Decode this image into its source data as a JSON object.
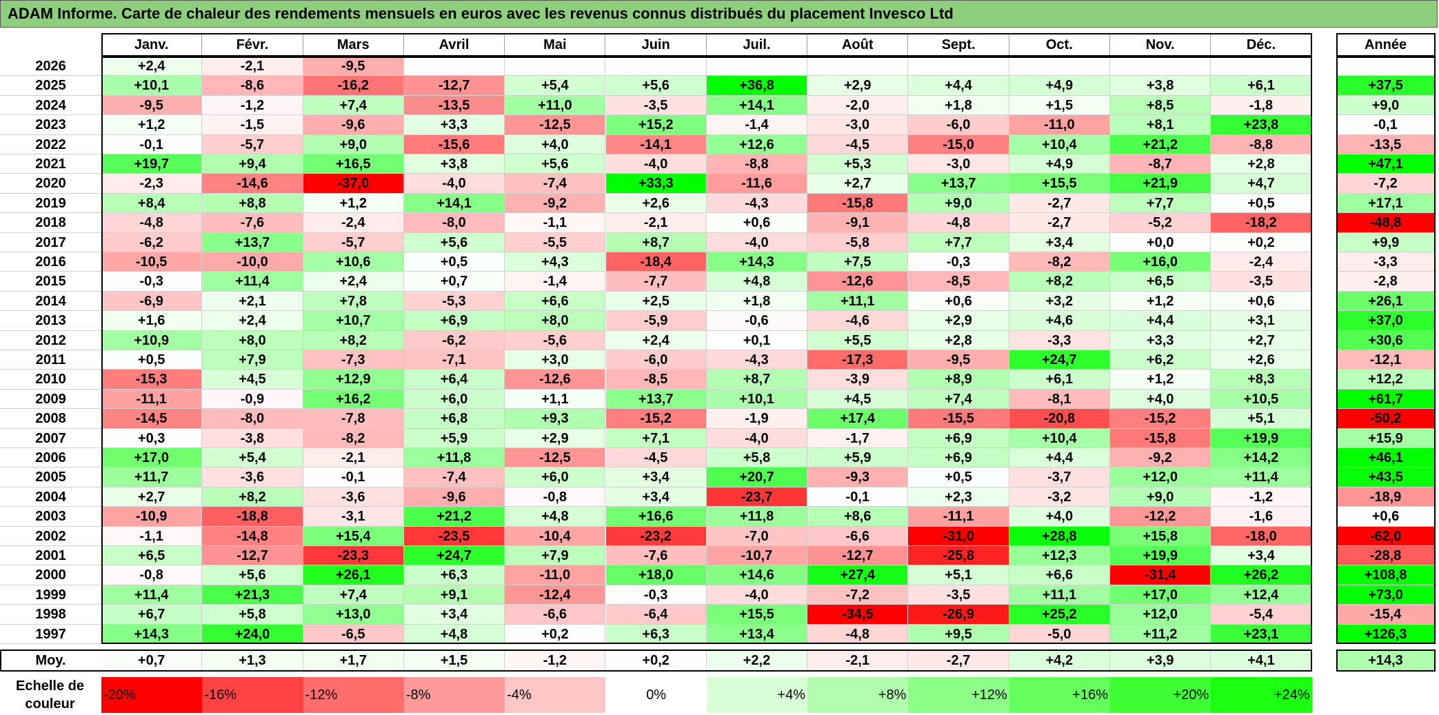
{
  "title": "ADAM Informe. Carte de chaleur des rendements mensuels en euros avec les revenus connus distribués du placement Invesco Ltd",
  "chart_data": {
    "type": "heatmap",
    "months": [
      "Janv.",
      "Févr.",
      "Mars",
      "Avril",
      "Mai",
      "Juin",
      "Juil.",
      "Août",
      "Sept.",
      "Oct.",
      "Nov.",
      "Déc."
    ],
    "year_header": "Année",
    "rows": [
      {
        "year": "2026",
        "values": [
          2.4,
          -2.1,
          -9.5,
          null,
          null,
          null,
          null,
          null,
          null,
          null,
          null,
          null
        ],
        "annual": null
      },
      {
        "year": "2025",
        "values": [
          10.1,
          -8.6,
          -16.2,
          -12.7,
          5.4,
          5.6,
          36.8,
          2.9,
          4.4,
          4.9,
          3.8,
          6.1
        ],
        "annual": 37.5
      },
      {
        "year": "2024",
        "values": [
          -9.5,
          -1.2,
          7.4,
          -13.5,
          11.0,
          -3.5,
          14.1,
          -2.0,
          1.8,
          1.5,
          8.5,
          -1.8
        ],
        "annual": 9.0
      },
      {
        "year": "2023",
        "values": [
          1.2,
          -1.5,
          -9.6,
          3.3,
          -12.5,
          15.2,
          -1.4,
          -3.0,
          -6.0,
          -11.0,
          8.1,
          23.8
        ],
        "annual": -0.1
      },
      {
        "year": "2022",
        "values": [
          -0.1,
          -5.7,
          9.0,
          -15.6,
          4.0,
          -14.1,
          12.6,
          -4.5,
          -15.0,
          10.4,
          21.2,
          -8.8
        ],
        "annual": -13.5
      },
      {
        "year": "2021",
        "values": [
          19.7,
          9.4,
          16.5,
          3.8,
          5.6,
          -4.0,
          -8.8,
          5.3,
          -3.0,
          4.9,
          -8.7,
          2.8
        ],
        "annual": 47.1
      },
      {
        "year": "2020",
        "values": [
          -2.3,
          -14.6,
          -37.0,
          -4.0,
          -7.4,
          33.3,
          -11.6,
          2.7,
          13.7,
          15.5,
          21.9,
          4.7
        ],
        "annual": -7.2
      },
      {
        "year": "2019",
        "values": [
          8.4,
          8.8,
          1.2,
          14.1,
          -9.2,
          2.6,
          -4.3,
          -15.8,
          9.0,
          -2.7,
          7.7,
          0.5
        ],
        "annual": 17.1
      },
      {
        "year": "2018",
        "values": [
          -4.8,
          -7.6,
          -2.4,
          -8.0,
          -1.1,
          -2.1,
          0.6,
          -9.1,
          -4.8,
          -2.7,
          -5.2,
          -18.2
        ],
        "annual": -48.8
      },
      {
        "year": "2017",
        "values": [
          -6.2,
          13.7,
          -5.7,
          5.6,
          -5.5,
          8.7,
          -4.0,
          -5.8,
          7.7,
          3.4,
          0.0,
          0.2
        ],
        "annual": 9.9
      },
      {
        "year": "2016",
        "values": [
          -10.5,
          -10.0,
          10.6,
          0.5,
          4.3,
          -18.4,
          14.3,
          7.5,
          -0.3,
          -8.2,
          16.0,
          -2.4
        ],
        "annual": -3.3
      },
      {
        "year": "2015",
        "values": [
          -0.3,
          11.4,
          2.4,
          0.7,
          -1.4,
          -7.7,
          4.8,
          -12.6,
          -8.5,
          8.2,
          6.5,
          -3.5
        ],
        "annual": -2.8
      },
      {
        "year": "2014",
        "values": [
          -6.9,
          2.1,
          7.8,
          -5.3,
          6.6,
          2.5,
          1.8,
          11.1,
          0.6,
          3.2,
          1.2,
          0.6
        ],
        "annual": 26.1
      },
      {
        "year": "2013",
        "values": [
          1.6,
          2.4,
          10.7,
          6.9,
          8.0,
          -5.9,
          -0.6,
          -4.6,
          2.9,
          4.6,
          4.4,
          3.1
        ],
        "annual": 37.0
      },
      {
        "year": "2012",
        "values": [
          10.9,
          8.0,
          8.2,
          -6.2,
          -5.6,
          2.4,
          0.1,
          5.5,
          2.8,
          -3.3,
          3.3,
          2.7
        ],
        "annual": 30.6
      },
      {
        "year": "2011",
        "values": [
          0.5,
          7.9,
          -7.3,
          -7.1,
          3.0,
          -6.0,
          -4.3,
          -17.3,
          -9.5,
          24.7,
          6.2,
          2.6
        ],
        "annual": -12.1
      },
      {
        "year": "2010",
        "values": [
          -15.3,
          4.5,
          12.9,
          6.4,
          -12.6,
          -8.5,
          8.7,
          -3.9,
          8.9,
          6.1,
          1.2,
          8.3
        ],
        "annual": 12.2
      },
      {
        "year": "2009",
        "values": [
          -11.1,
          -0.9,
          16.2,
          6.0,
          1.1,
          13.7,
          10.1,
          4.5,
          7.4,
          -8.1,
          4.0,
          10.5
        ],
        "annual": 61.7
      },
      {
        "year": "2008",
        "values": [
          -14.5,
          -8.0,
          -7.8,
          6.8,
          9.3,
          -15.2,
          -1.9,
          17.4,
          -15.5,
          -20.8,
          -15.2,
          5.1
        ],
        "annual": -50.2
      },
      {
        "year": "2007",
        "values": [
          0.3,
          -3.8,
          -8.2,
          5.9,
          2.9,
          7.1,
          -4.0,
          -1.7,
          6.9,
          10.4,
          -15.8,
          19.9
        ],
        "annual": 15.9
      },
      {
        "year": "2006",
        "values": [
          17.0,
          5.4,
          -2.1,
          11.8,
          -12.5,
          -4.5,
          5.8,
          5.9,
          6.9,
          4.4,
          -9.2,
          14.2
        ],
        "annual": 46.1
      },
      {
        "year": "2005",
        "values": [
          11.7,
          -3.6,
          -0.1,
          -7.4,
          6.0,
          3.4,
          20.7,
          -9.3,
          0.5,
          -3.7,
          12.0,
          11.4
        ],
        "annual": 43.5
      },
      {
        "year": "2004",
        "values": [
          2.7,
          8.2,
          -3.6,
          -9.6,
          -0.8,
          3.4,
          -23.7,
          -0.1,
          2.3,
          -3.2,
          9.0,
          -1.2
        ],
        "annual": -18.9
      },
      {
        "year": "2003",
        "values": [
          -10.9,
          -18.8,
          -3.1,
          21.2,
          4.8,
          16.6,
          11.8,
          8.6,
          -11.1,
          4.0,
          -12.2,
          -1.6
        ],
        "annual": 0.6
      },
      {
        "year": "2002",
        "values": [
          -1.1,
          -14.8,
          15.4,
          -23.5,
          -10.4,
          -23.2,
          -7.0,
          -6.6,
          -31.0,
          28.8,
          15.8,
          -18.0
        ],
        "annual": -62.0
      },
      {
        "year": "2001",
        "values": [
          6.5,
          -12.7,
          -23.3,
          24.7,
          7.9,
          -7.6,
          -10.7,
          -12.7,
          -25.8,
          12.3,
          19.9,
          3.4
        ],
        "annual": -28.8
      },
      {
        "year": "2000",
        "values": [
          -0.8,
          5.6,
          26.1,
          6.3,
          -11.0,
          18.0,
          14.6,
          27.4,
          5.1,
          6.6,
          -31.4,
          26.2
        ],
        "annual": 108.8
      },
      {
        "year": "1999",
        "values": [
          11.4,
          21.3,
          7.4,
          9.1,
          -12.4,
          -0.3,
          -4.0,
          -7.2,
          -3.5,
          11.1,
          17.0,
          12.4
        ],
        "annual": 73.0
      },
      {
        "year": "1998",
        "values": [
          6.7,
          5.8,
          13.0,
          3.4,
          -6.6,
          -6.4,
          15.5,
          -34.5,
          -26.9,
          25.2,
          12.0,
          -5.4
        ],
        "annual": -15.4
      },
      {
        "year": "1997",
        "values": [
          14.3,
          24.0,
          -6.5,
          4.8,
          0.2,
          6.3,
          13.4,
          -4.8,
          9.5,
          -5.0,
          11.2,
          23.1
        ],
        "annual": 126.3
      }
    ],
    "average": {
      "label": "Moy.",
      "values": [
        0.7,
        1.3,
        1.7,
        1.5,
        -1.2,
        0.2,
        2.2,
        -2.1,
        -2.7,
        4.2,
        3.9,
        4.1
      ],
      "annual": 14.3
    },
    "scale": {
      "label": "Echelle de couleur",
      "stops": [
        "-20%",
        "-16%",
        "-12%",
        "-8%",
        "-4%",
        "0%",
        "+4%",
        "+8%",
        "+12%",
        "+16%",
        "+20%",
        "+24%"
      ],
      "colors": [
        "#ff0000",
        "#ff4343",
        "#ff6d6d",
        "#ff9a9a",
        "#ffc6c6",
        "#ffffff",
        "#d9ffd6",
        "#b1ffad",
        "#8cff87",
        "#64ff5c",
        "#3dff34",
        "#1bff10"
      ]
    }
  }
}
